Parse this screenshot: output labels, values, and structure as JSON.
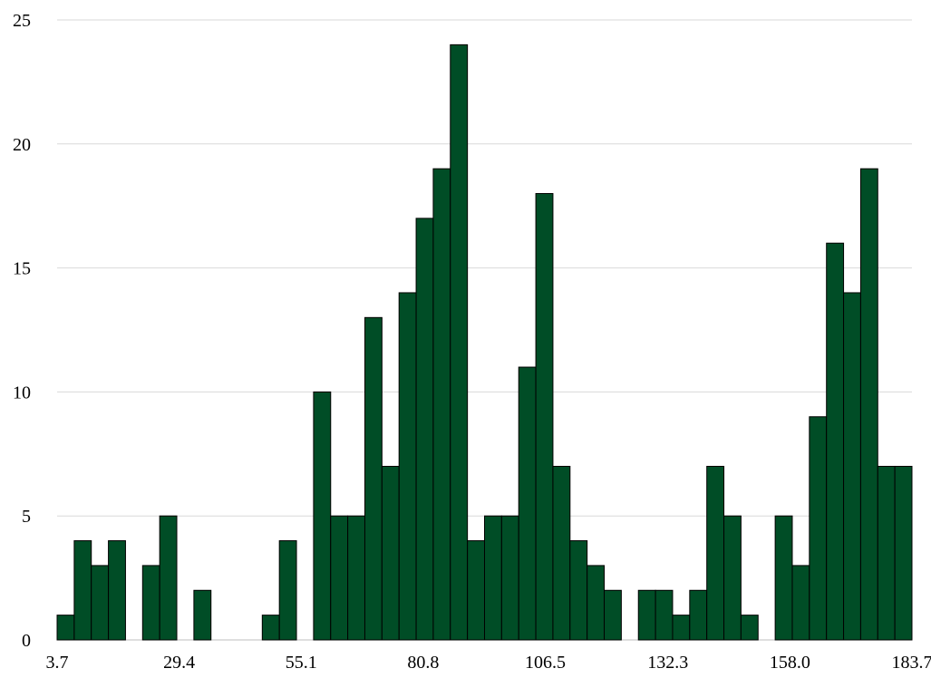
{
  "chart_data": {
    "type": "bar",
    "title": "",
    "xlabel": "",
    "ylabel": "",
    "bar_color": "#004d26",
    "bar_edge_color": "#000000",
    "grid_color": "#d9d9d9",
    "grid": true,
    "legend": false,
    "ylim": [
      0,
      25
    ],
    "y_ticks": [
      0,
      5,
      10,
      15,
      20,
      25
    ],
    "x_range": [
      3.7,
      183.7
    ],
    "x_tick_values": [
      3.7,
      29.4,
      55.1,
      80.8,
      106.5,
      132.3,
      158.0,
      183.7
    ],
    "x_tick_labels": [
      "3.7",
      "29.4",
      "55.1",
      "80.8",
      "106.5",
      "132.3",
      "158.0",
      "183.7"
    ],
    "bin_count": 50,
    "values": [
      1,
      4,
      3,
      4,
      0,
      3,
      5,
      0,
      2,
      0,
      0,
      0,
      1,
      4,
      0,
      10,
      5,
      5,
      13,
      7,
      14,
      17,
      19,
      24,
      4,
      5,
      5,
      11,
      18,
      7,
      4,
      3,
      2,
      0,
      2,
      2,
      1,
      2,
      7,
      5,
      1,
      0,
      5,
      3,
      9,
      16,
      14,
      19,
      7,
      7
    ]
  }
}
